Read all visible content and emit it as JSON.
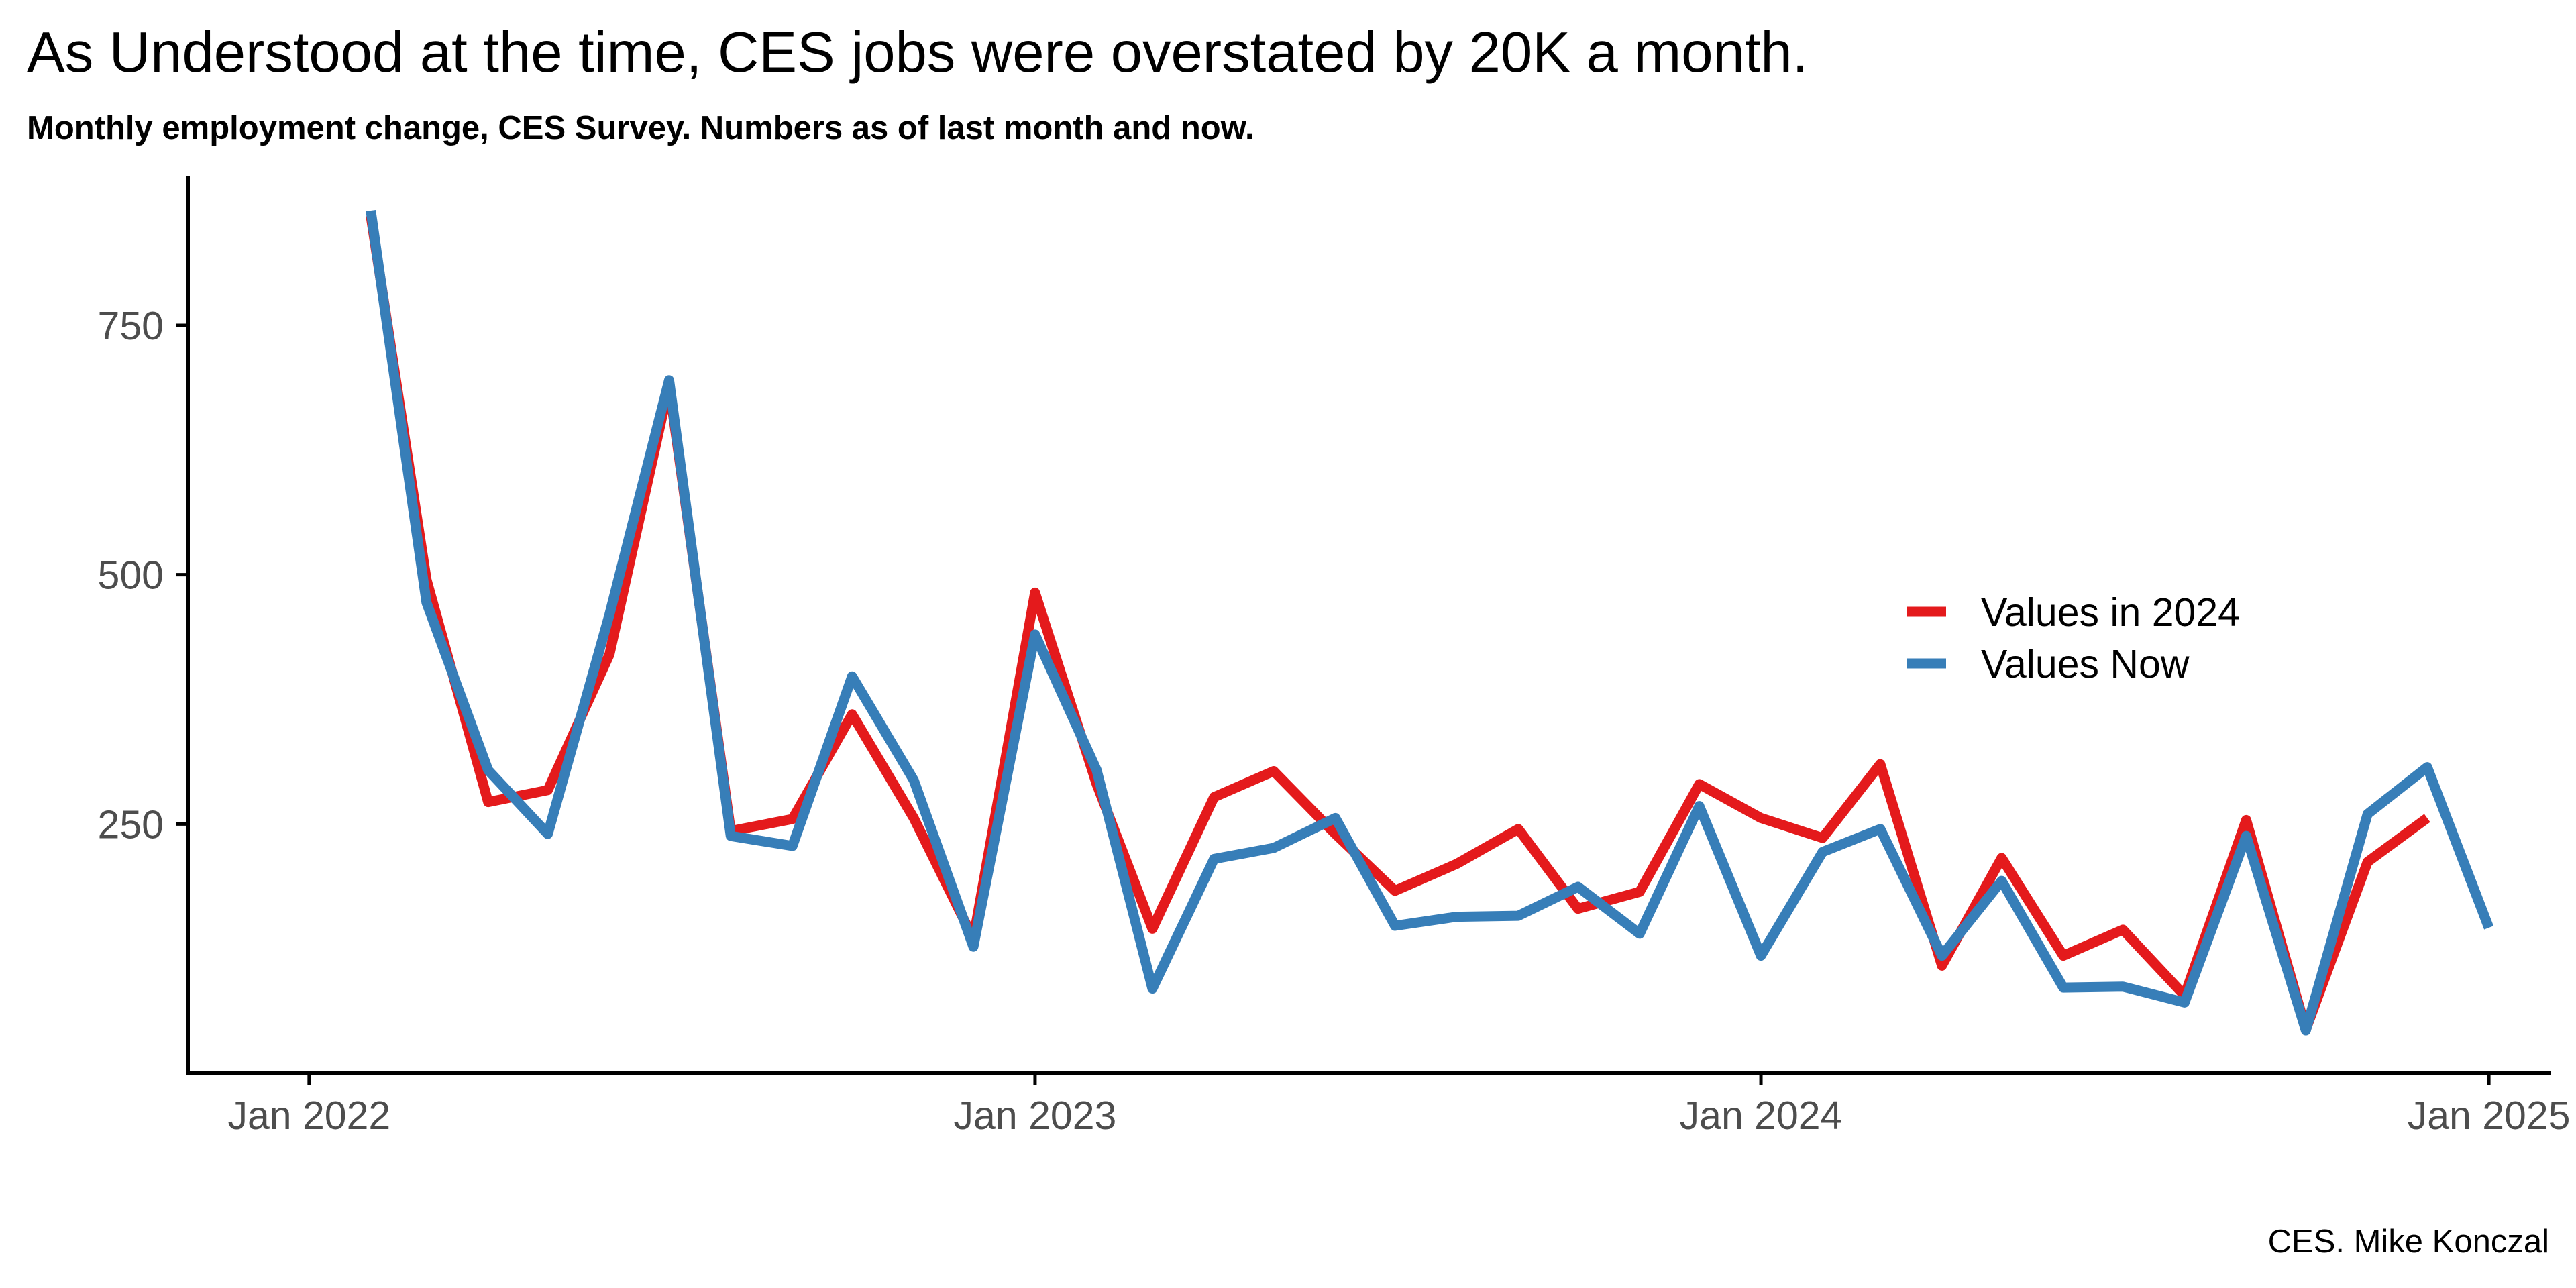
{
  "title": "As Understood at the time, CES jobs were overstated by 20K a month.",
  "subtitle": "Monthly employment change, CES Survey. Numbers as of last month and now.",
  "caption": "CES. Mike Konczal",
  "chart_data": {
    "type": "line",
    "title": "As Understood at the time, CES jobs were overstated by 20K a month.",
    "subtitle": "Monthly employment change, CES Survey. Numbers as of last month and now.",
    "xlabel": "",
    "ylabel": "",
    "x_axis_type": "date",
    "xlim": [
      "2021-11-01",
      "2025-02-01"
    ],
    "ylim": [
      0,
      900
    ],
    "x_ticks": [
      {
        "value": "2022-01-01",
        "label": "Jan 2022"
      },
      {
        "value": "2023-01-01",
        "label": "Jan 2023"
      },
      {
        "value": "2024-01-01",
        "label": "Jan 2024"
      },
      {
        "value": "2025-01-01",
        "label": "Jan 2025"
      }
    ],
    "y_ticks": [
      {
        "value": 250,
        "label": "250"
      },
      {
        "value": 500,
        "label": "500"
      },
      {
        "value": 750,
        "label": "750"
      }
    ],
    "grid": false,
    "legend_position": "right",
    "series": [
      {
        "name": "Values in 2024",
        "color": "#e41a1c",
        "x": [
          "2022-02-01",
          "2022-03-01",
          "2022-04-01",
          "2022-05-01",
          "2022-06-01",
          "2022-07-01",
          "2022-08-01",
          "2022-09-01",
          "2022-10-01",
          "2022-11-01",
          "2022-12-01",
          "2023-01-01",
          "2023-02-01",
          "2023-03-01",
          "2023-04-01",
          "2023-05-01",
          "2023-06-01",
          "2023-07-01",
          "2023-08-01",
          "2023-09-01",
          "2023-10-01",
          "2023-11-01",
          "2023-12-01",
          "2024-01-01",
          "2024-02-01",
          "2024-03-01",
          "2024-04-01",
          "2024-05-01",
          "2024-06-01",
          "2024-07-01",
          "2024-08-01",
          "2024-09-01",
          "2024-10-01",
          "2024-11-01",
          "2024-12-01"
        ],
        "values": [
          860,
          495,
          272,
          284,
          420,
          690,
          243,
          255,
          360,
          256,
          135,
          482,
          290,
          145,
          277,
          303,
          240,
          183,
          210,
          245,
          165,
          182,
          290,
          256,
          236,
          310,
          108,
          216,
          118,
          144,
          78,
          254,
          44,
          212,
          256
        ]
      },
      {
        "name": "Values Now",
        "color": "#377eb8",
        "x": [
          "2022-02-01",
          "2022-03-01",
          "2022-04-01",
          "2022-05-01",
          "2022-06-01",
          "2022-07-01",
          "2022-08-01",
          "2022-09-01",
          "2022-10-01",
          "2022-11-01",
          "2022-12-01",
          "2023-01-01",
          "2023-02-01",
          "2023-03-01",
          "2023-04-01",
          "2023-05-01",
          "2023-06-01",
          "2023-07-01",
          "2023-08-01",
          "2023-09-01",
          "2023-10-01",
          "2023-11-01",
          "2023-12-01",
          "2024-01-01",
          "2024-02-01",
          "2024-03-01",
          "2024-04-01",
          "2024-05-01",
          "2024-06-01",
          "2024-07-01",
          "2024-08-01",
          "2024-09-01",
          "2024-10-01",
          "2024-11-01",
          "2024-12-01",
          "2025-01-01"
        ],
        "values": [
          865,
          472,
          304,
          240,
          460,
          695,
          238,
          228,
          398,
          294,
          127,
          440,
          304,
          85,
          215,
          226,
          256,
          148,
          157,
          158,
          187,
          140,
          268,
          118,
          222,
          245,
          118,
          193,
          86,
          87,
          71,
          238,
          43,
          260,
          307,
          146
        ]
      }
    ]
  }
}
